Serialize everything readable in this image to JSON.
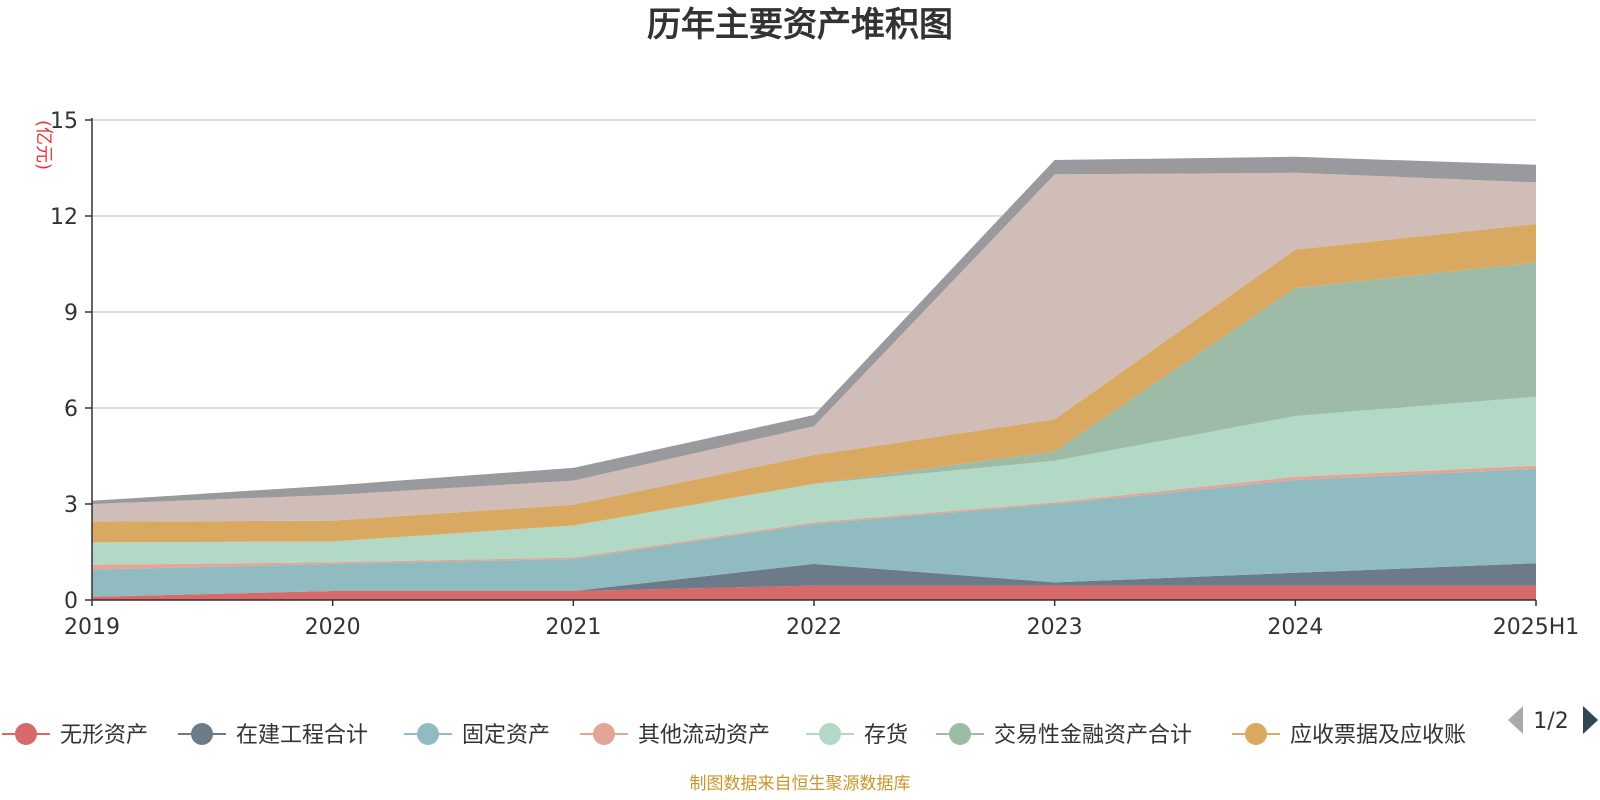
{
  "chart_data": {
    "type": "area",
    "stacked": true,
    "title": "历年主要资产堆积图",
    "ylabel": "(亿元)",
    "x": [
      "2019",
      "2020",
      "2021",
      "2022",
      "2023",
      "2024",
      "2025H1"
    ],
    "ylim": [
      0,
      15
    ],
    "yticks": [
      0,
      3,
      6,
      9,
      12,
      15
    ],
    "grid": true,
    "series": [
      {
        "name": "无形资产",
        "color": "#d8696b",
        "values": [
          0.1,
          0.28,
          0.28,
          0.45,
          0.45,
          0.45,
          0.45
        ]
      },
      {
        "name": "在建工程合计",
        "color": "#6c7b87",
        "values": [
          0.0,
          0.0,
          0.0,
          0.68,
          0.1,
          0.4,
          0.7
        ]
      },
      {
        "name": "固定资产",
        "color": "#90bbc1",
        "values": [
          0.85,
          0.85,
          1.0,
          1.25,
          2.45,
          2.9,
          2.95
        ]
      },
      {
        "name": "其他流动资产",
        "color": "#e4a596",
        "values": [
          0.15,
          0.05,
          0.05,
          0.05,
          0.05,
          0.1,
          0.1
        ]
      },
      {
        "name": "存货",
        "color": "#b1d9c6",
        "values": [
          0.7,
          0.65,
          1.0,
          1.2,
          1.3,
          1.9,
          2.15
        ]
      },
      {
        "name": "交易性金融资产合计",
        "color": "#9dbba6",
        "values": [
          0.0,
          0.0,
          0.0,
          0.0,
          0.3,
          4.0,
          4.2
        ]
      },
      {
        "name": "应收票据及应收账",
        "color": "#d9a962",
        "values": [
          0.65,
          0.65,
          0.65,
          0.9,
          1.0,
          1.2,
          1.2
        ]
      },
      {
        "name": "",
        "color": "#d0bdb7",
        "values": [
          0.55,
          0.8,
          0.75,
          0.9,
          7.65,
          2.4,
          1.3
        ]
      },
      {
        "name": "",
        "color": "#9a9a9e",
        "values": [
          0.1,
          0.3,
          0.4,
          0.35,
          0.45,
          0.5,
          0.55
        ]
      }
    ],
    "legend_position": "bottom",
    "legend_page": "1/2",
    "source_note": "制图数据来自恒生聚源数据库"
  }
}
